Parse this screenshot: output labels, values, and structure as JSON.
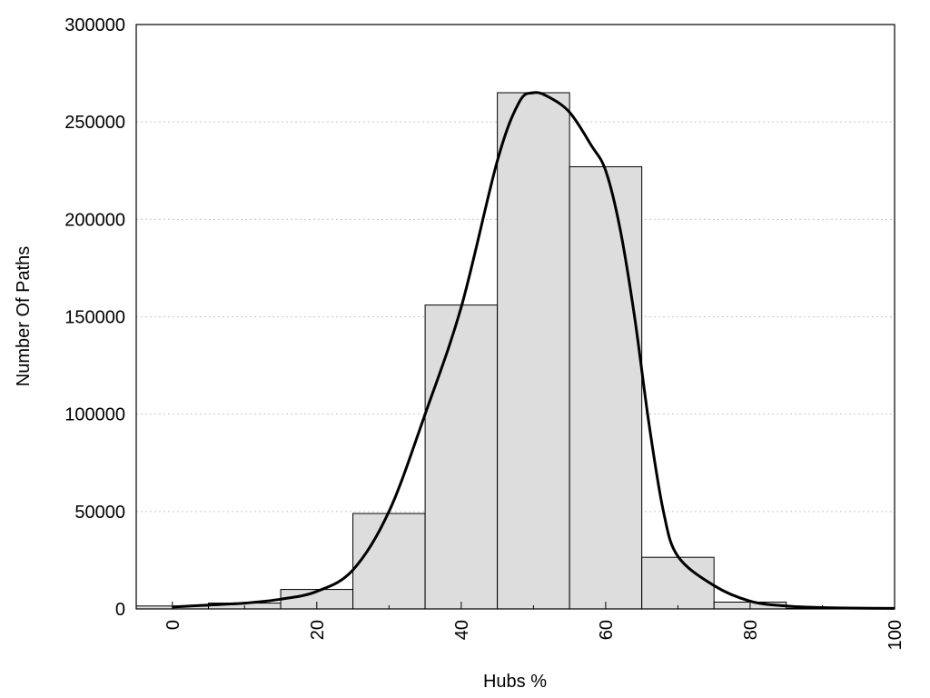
{
  "chart_data": {
    "type": "bar",
    "xlabel": "Hubs %",
    "ylabel": "Number Of Paths",
    "xlim": [
      -5,
      100
    ],
    "ylim": [
      0,
      300000
    ],
    "x_ticks": [
      0,
      20,
      40,
      60,
      80,
      100
    ],
    "y_ticks": [
      0,
      50000,
      100000,
      150000,
      200000,
      250000,
      300000
    ],
    "grid": true,
    "bar_width": 10,
    "bar_color": "#dddddd",
    "bars": [
      {
        "x": 0,
        "value": 1500
      },
      {
        "x": 10,
        "value": 3000
      },
      {
        "x": 20,
        "value": 10000
      },
      {
        "x": 30,
        "value": 49000
      },
      {
        "x": 40,
        "value": 156000
      },
      {
        "x": 50,
        "value": 265000
      },
      {
        "x": 60,
        "value": 227000
      },
      {
        "x": 70,
        "value": 26500
      },
      {
        "x": 80,
        "value": 3500
      },
      {
        "x": 90,
        "value": 300
      }
    ],
    "curve": {
      "type": "line",
      "color": "#000000",
      "x": [
        0,
        5,
        10,
        15,
        20,
        25,
        30,
        35,
        40,
        45,
        48,
        50,
        52,
        55,
        58,
        60,
        62,
        64,
        66,
        68,
        70,
        75,
        80,
        85,
        90,
        95,
        100
      ],
      "y": [
        1000,
        2000,
        3000,
        5000,
        9000,
        20000,
        50000,
        100000,
        155000,
        230000,
        260000,
        265000,
        263000,
        255000,
        238000,
        225000,
        195000,
        150000,
        95000,
        50000,
        27000,
        12000,
        4000,
        1500,
        700,
        400,
        300
      ]
    }
  }
}
